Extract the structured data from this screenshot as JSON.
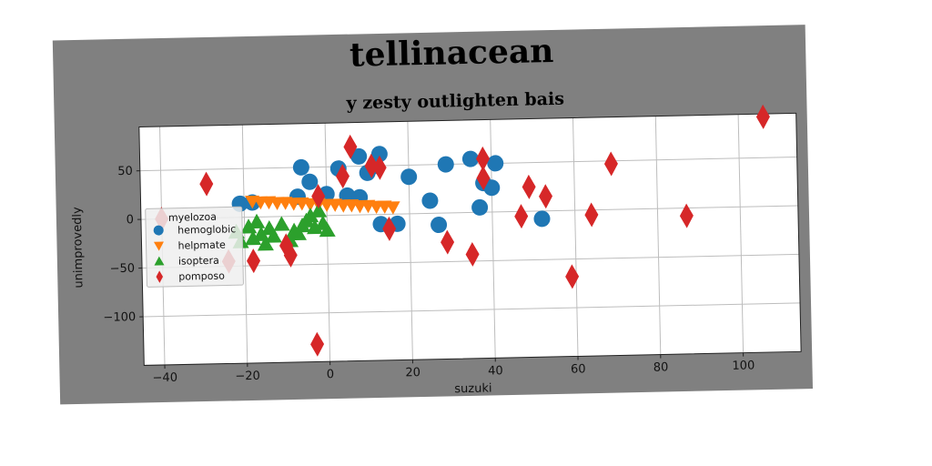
{
  "chart_data": {
    "type": "scatter",
    "title": "tellinacean",
    "subtitle": "y zesty outlighten bais",
    "xlabel": "suzuki",
    "ylabel": "unimprovedly",
    "xlim": [
      -45,
      114
    ],
    "ylim": [
      -150,
      95
    ],
    "xticks": [
      -40,
      -20,
      0,
      20,
      40,
      60,
      80,
      100
    ],
    "yticks": [
      50,
      0,
      -50,
      -100
    ],
    "grid": true,
    "legend": {
      "title": "myelozoa",
      "placement": "center-left"
    },
    "series": [
      {
        "name": "hemoglobic",
        "color": "#1f77b4",
        "marker": "circle",
        "points": [
          [
            -21,
            14
          ],
          [
            -18,
            15
          ],
          [
            -7,
            20
          ],
          [
            -6,
            50
          ],
          [
            -4,
            35
          ],
          [
            0,
            22
          ],
          [
            3,
            48
          ],
          [
            5,
            20
          ],
          [
            8,
            18
          ],
          [
            8,
            60
          ],
          [
            10,
            43
          ],
          [
            12,
            50
          ],
          [
            13,
            62
          ],
          [
            13,
            -10
          ],
          [
            17,
            -10
          ],
          [
            20,
            38
          ],
          [
            25,
            13
          ],
          [
            27,
            -12
          ],
          [
            29,
            50
          ],
          [
            35,
            55
          ],
          [
            37,
            5
          ],
          [
            38,
            30
          ],
          [
            40,
            25
          ],
          [
            41,
            50
          ],
          [
            52,
            -8
          ]
        ]
      },
      {
        "name": "helpmate",
        "color": "#ff7f0e",
        "marker": "triangle-down",
        "points": [
          [
            -18,
            16
          ],
          [
            -16,
            15
          ],
          [
            -14,
            15
          ],
          [
            -12,
            14
          ],
          [
            -10,
            14
          ],
          [
            -8,
            13
          ],
          [
            -6,
            13
          ],
          [
            -4,
            12
          ],
          [
            -2,
            12
          ],
          [
            0,
            11
          ],
          [
            2,
            11
          ],
          [
            4,
            10
          ],
          [
            6,
            10
          ],
          [
            8,
            9
          ],
          [
            10,
            9
          ],
          [
            12,
            8
          ],
          [
            14,
            8
          ],
          [
            16,
            7
          ]
        ]
      },
      {
        "name": "isoptera",
        "color": "#2ca02c",
        "marker": "triangle",
        "points": [
          [
            -22,
            -15
          ],
          [
            -21,
            -25
          ],
          [
            -19,
            -10
          ],
          [
            -18,
            -22
          ],
          [
            -17,
            -5
          ],
          [
            -16,
            -18
          ],
          [
            -15,
            -28
          ],
          [
            -14,
            -12
          ],
          [
            -13,
            -20
          ],
          [
            -11,
            -8
          ],
          [
            -9,
            -25
          ],
          [
            -8,
            -15
          ],
          [
            -7,
            -18
          ],
          [
            -6,
            -10
          ],
          [
            -5,
            -5
          ],
          [
            -4,
            0
          ],
          [
            -3,
            -12
          ],
          [
            -2,
            5
          ],
          [
            -1,
            -8
          ],
          [
            0,
            -15
          ]
        ]
      },
      {
        "name": "pomposo",
        "color": "#d62728",
        "marker": "diamond",
        "points": [
          [
            -40,
            0
          ],
          [
            -29,
            35
          ],
          [
            -24,
            -45
          ],
          [
            -18,
            -45
          ],
          [
            -10,
            -30
          ],
          [
            -9,
            -40
          ],
          [
            -2,
            20
          ],
          [
            -3,
            -132
          ],
          [
            4,
            40
          ],
          [
            6,
            70
          ],
          [
            11,
            50
          ],
          [
            13,
            48
          ],
          [
            15,
            -15
          ],
          [
            29,
            -30
          ],
          [
            35,
            -43
          ],
          [
            38,
            55
          ],
          [
            38,
            35
          ],
          [
            47,
            -5
          ],
          [
            49,
            25
          ],
          [
            53,
            15
          ],
          [
            59,
            -68
          ],
          [
            64,
            -5
          ],
          [
            69,
            47
          ],
          [
            87,
            -8
          ],
          [
            106,
            92
          ]
        ]
      }
    ]
  }
}
